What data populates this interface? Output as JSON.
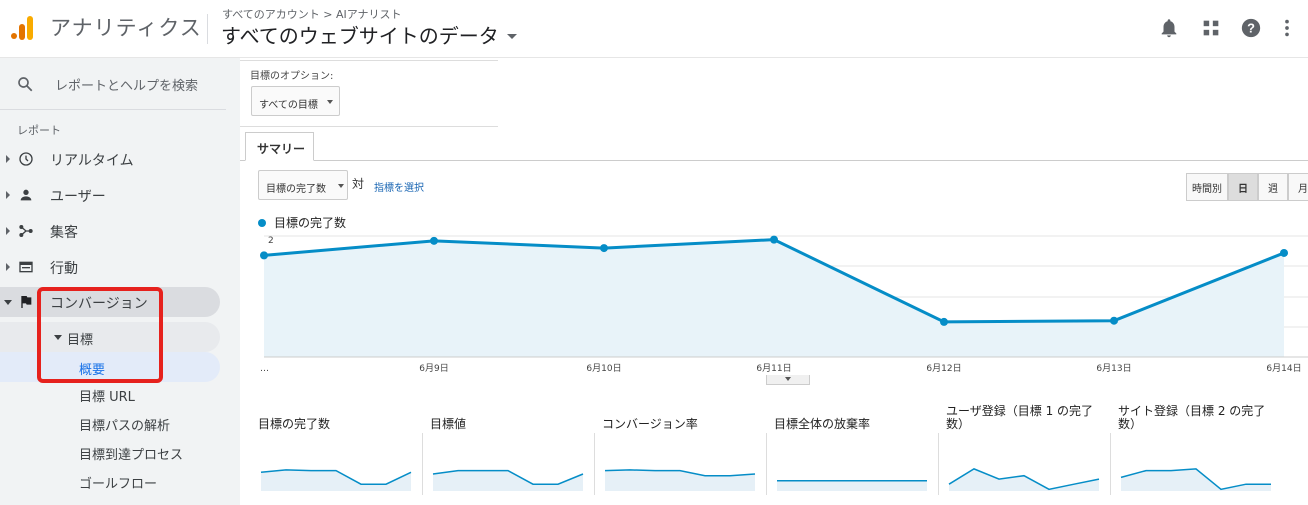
{
  "header": {
    "app_title": "アナリティクス",
    "breadcrumb": "すべてのアカウント > AIアナリスト",
    "view_title": "すべてのウェブサイトのデータ"
  },
  "sidebar": {
    "search_placeholder": "レポートとヘルプを検索",
    "reports_label": "レポート",
    "items": [
      {
        "label": "リアルタイム",
        "icon": "clock-icon"
      },
      {
        "label": "ユーザー",
        "icon": "person-icon"
      },
      {
        "label": "集客",
        "icon": "acquisition-icon"
      },
      {
        "label": "行動",
        "icon": "behavior-icon"
      },
      {
        "label": "コンバージョン",
        "icon": "flag-icon"
      }
    ],
    "goals_label": "目標",
    "goal_subitems": [
      "概要",
      "目標 URL",
      "目標パスの解析",
      "目標到達プロセス",
      "ゴールフロー"
    ],
    "highlight_color": "#e6211d"
  },
  "main": {
    "goal_option_label": "目標のオプション:",
    "goal_option_value": "すべての目標",
    "tab_summary": "サマリー",
    "metric_select": "目標の完了数",
    "vs_label": "対",
    "select_metric_link": "指標を選択",
    "period_buttons": [
      "時間別",
      "日",
      "週",
      "月"
    ],
    "active_period": "日"
  },
  "chart_data": {
    "type": "area",
    "series": [
      {
        "name": "目標の完了数",
        "values": [
          0.84,
          0.96,
          0.9,
          0.97,
          0.29,
          0.3,
          0.86
        ]
      }
    ],
    "categories": [
      "…",
      "6月9日",
      "6月10日",
      "6月11日",
      "6月12日",
      "6月13日",
      "6月14日"
    ],
    "y_tick_label": "2",
    "color": "#058dc7",
    "fill": "#e8f3f9"
  },
  "sparklines": [
    {
      "title": "目標の完了数",
      "values": [
        0.55,
        0.62,
        0.6,
        0.6,
        0.2,
        0.2,
        0.55
      ]
    },
    {
      "title": "目標値",
      "values": [
        0.5,
        0.6,
        0.6,
        0.6,
        0.2,
        0.2,
        0.5
      ]
    },
    {
      "title": "コンバージョン率",
      "values": [
        0.6,
        0.62,
        0.6,
        0.6,
        0.45,
        0.45,
        0.5
      ]
    },
    {
      "title": "目標全体の放棄率",
      "values": [
        0.3,
        0.3,
        0.3,
        0.3,
        0.3,
        0.3,
        0.3
      ]
    },
    {
      "title": "ユーザ登録（目標 1 の完了数）",
      "values": [
        0.2,
        0.65,
        0.35,
        0.45,
        0.05,
        0.2,
        0.35
      ]
    },
    {
      "title": "サイト登録（目標 2 の完了数）",
      "values": [
        0.4,
        0.6,
        0.6,
        0.65,
        0.05,
        0.2,
        0.2
      ]
    }
  ]
}
